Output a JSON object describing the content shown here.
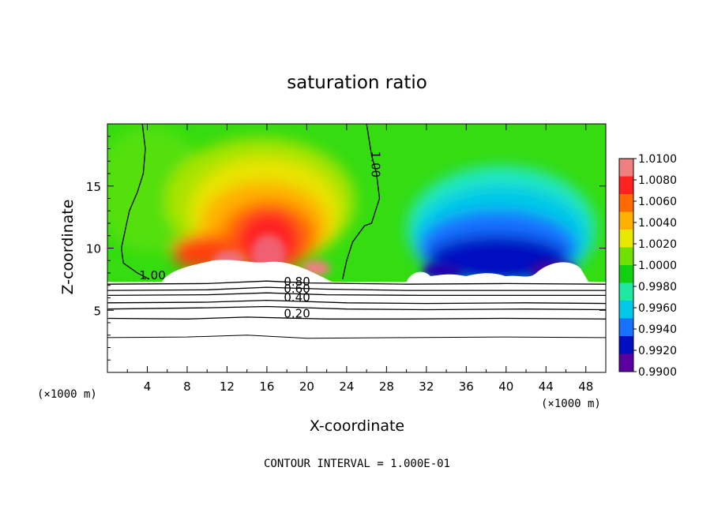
{
  "chart_data": {
    "type": "heatmap",
    "title": "saturation ratio",
    "xlabel": "X-coordinate",
    "ylabel": "Z-coordinate",
    "x_unit": "(×1000 m)",
    "footer": "CONTOUR INTERVAL = 1.000E-01",
    "xlim": [
      0,
      50
    ],
    "ylim": [
      0,
      20
    ],
    "x_ticks": [
      4,
      8,
      12,
      16,
      20,
      24,
      28,
      32,
      36,
      40,
      44,
      48
    ],
    "y_ticks": [
      5,
      10,
      15
    ],
    "colorbar": {
      "levels": [
        "1.0100",
        "1.0080",
        "1.0060",
        "1.0040",
        "1.0020",
        "1.0000",
        "0.9980",
        "0.9960",
        "0.9940",
        "0.9920",
        "0.9900"
      ],
      "colors": [
        "#f08080",
        "#ff2020",
        "#ff6a00",
        "#ffb000",
        "#e8e800",
        "#70e000",
        "#10d010",
        "#20e8a0",
        "#00c8e8",
        "#1870ff",
        "#0010c0",
        "#5a00a0"
      ]
    },
    "contour_labels": [
      {
        "text": "1.00",
        "x": 3.2,
        "z": 7.5
      },
      {
        "text": "1.00",
        "x": 26.5,
        "z": 17.8
      },
      {
        "text": "0.80",
        "x": 17.7,
        "z": 7.0
      },
      {
        "text": "0.60",
        "x": 17.7,
        "z": 6.4
      },
      {
        "text": "0.40",
        "x": 17.7,
        "z": 5.7
      },
      {
        "text": "0.20",
        "x": 17.7,
        "z": 4.4
      }
    ],
    "contour_lines": [
      {
        "level": "1.00",
        "points": [
          [
            3.5,
            20
          ],
          [
            3.8,
            18
          ],
          [
            3.6,
            16
          ],
          [
            3,
            14.5
          ],
          [
            2.2,
            13
          ],
          [
            1.8,
            11.5
          ],
          [
            1.4,
            10
          ],
          [
            1.6,
            8.8
          ],
          [
            3,
            8
          ],
          [
            4.2,
            7.5
          ]
        ]
      },
      {
        "level": "1.00",
        "points": [
          [
            26,
            20
          ],
          [
            26.5,
            17.5
          ],
          [
            27,
            16
          ],
          [
            27.3,
            14
          ],
          [
            26.5,
            12
          ],
          [
            25.8,
            11.8
          ],
          [
            24.6,
            10.5
          ],
          [
            24,
            9
          ],
          [
            23.6,
            7.5
          ]
        ]
      },
      {
        "level": "0.80",
        "points": [
          [
            0,
            7.1
          ],
          [
            10,
            7.15
          ],
          [
            16,
            7.35
          ],
          [
            20,
            7.2
          ],
          [
            30,
            7.1
          ],
          [
            40,
            7.15
          ],
          [
            50,
            7.1
          ]
        ]
      },
      {
        "level": "0.60",
        "points": [
          [
            0,
            6.6
          ],
          [
            10,
            6.65
          ],
          [
            16,
            6.85
          ],
          [
            22,
            6.7
          ],
          [
            30,
            6.6
          ],
          [
            40,
            6.6
          ],
          [
            50,
            6.6
          ]
        ]
      },
      {
        "level": "0.50",
        "points": [
          [
            0,
            6.2
          ],
          [
            10,
            6.25
          ],
          [
            16,
            6.4
          ],
          [
            22,
            6.25
          ],
          [
            32,
            6.2
          ],
          [
            42,
            6.2
          ],
          [
            50,
            6.2
          ]
        ]
      },
      {
        "level": "0.40",
        "points": [
          [
            0,
            5.6
          ],
          [
            10,
            5.65
          ],
          [
            16,
            5.8
          ],
          [
            24,
            5.6
          ],
          [
            32,
            5.55
          ],
          [
            42,
            5.6
          ],
          [
            50,
            5.55
          ]
        ]
      },
      {
        "level": "0.30",
        "points": [
          [
            0,
            5.1
          ],
          [
            10,
            5.2
          ],
          [
            16,
            5.3
          ],
          [
            24,
            5.1
          ],
          [
            32,
            5.05
          ],
          [
            42,
            5.1
          ],
          [
            50,
            5.05
          ]
        ]
      },
      {
        "level": "0.20",
        "points": [
          [
            0,
            4.35
          ],
          [
            8,
            4.3
          ],
          [
            14,
            4.45
          ],
          [
            22,
            4.3
          ],
          [
            30,
            4.3
          ],
          [
            40,
            4.35
          ],
          [
            50,
            4.3
          ]
        ]
      },
      {
        "level": "0.10",
        "points": [
          [
            0,
            2.8
          ],
          [
            8,
            2.85
          ],
          [
            14,
            3.0
          ],
          [
            20,
            2.75
          ],
          [
            30,
            2.8
          ],
          [
            40,
            2.85
          ],
          [
            50,
            2.8
          ]
        ]
      }
    ]
  }
}
